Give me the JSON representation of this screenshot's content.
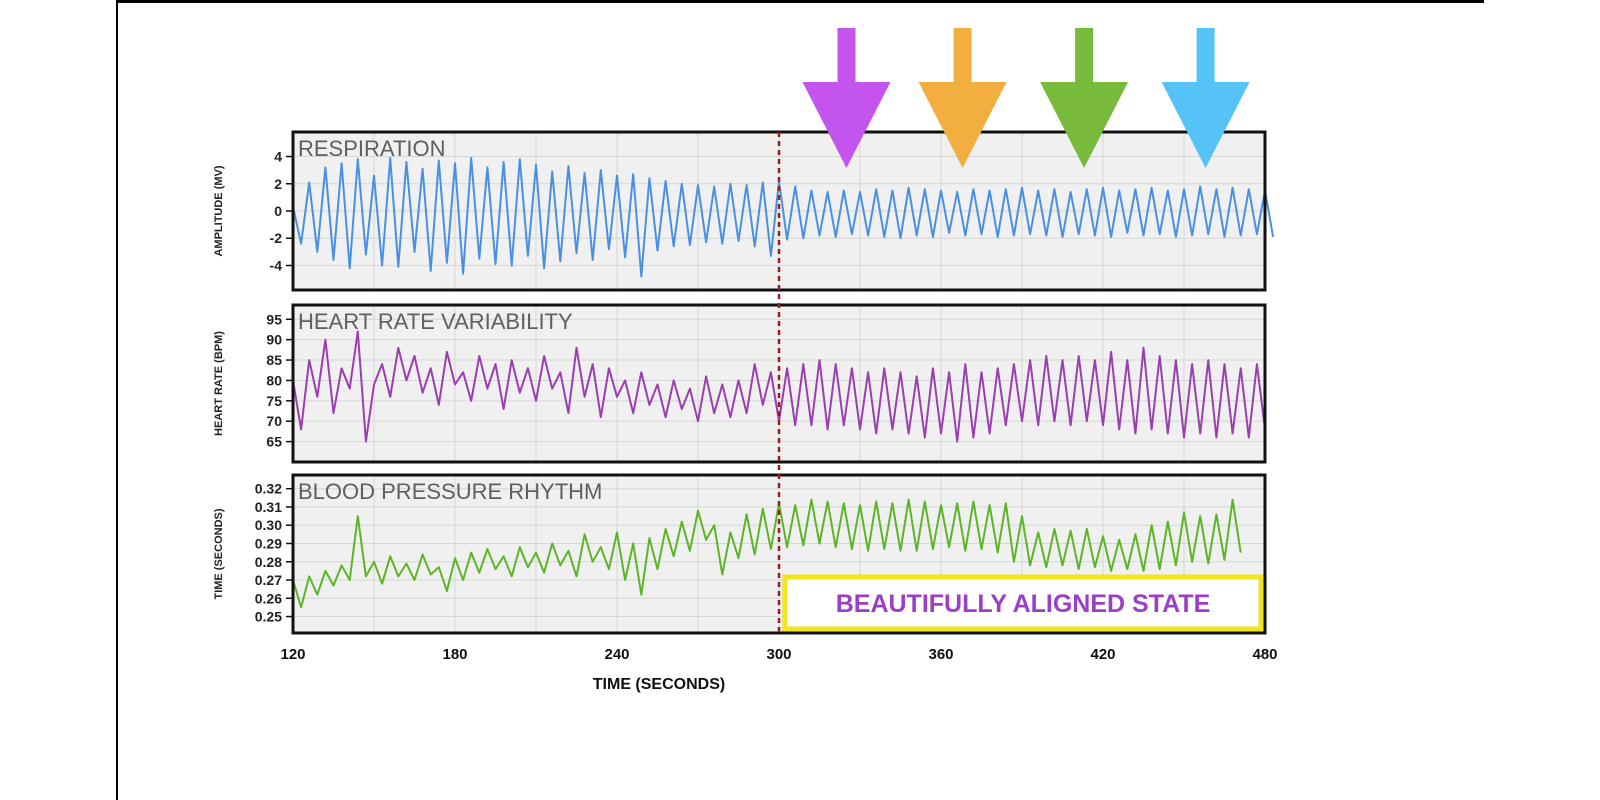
{
  "chart_data": {
    "type": "line",
    "x_axis": {
      "label": "TIME (SECONDS)",
      "range": [
        120,
        480
      ],
      "ticks": [
        120,
        180,
        240,
        300,
        360,
        420,
        480
      ]
    },
    "grid": true,
    "marker_line": {
      "x": 300,
      "style": "dashed",
      "color": "#9b1c1c"
    },
    "callout": {
      "text": "BEAUTIFULLY ALIGNED STATE",
      "x_range": [
        300,
        480
      ],
      "border_color": "#f2e51d",
      "text_color": "#9b3fc9"
    },
    "arrows": [
      {
        "x": 325,
        "color": "#c354ee"
      },
      {
        "x": 368,
        "color": "#f2ae3f"
      },
      {
        "x": 413,
        "color": "#78bb3c"
      },
      {
        "x": 458,
        "color": "#55c3f5"
      }
    ],
    "panels": [
      {
        "title": "RESPIRATION",
        "ylabel": "AMPLITUDE (MV)",
        "ylim": [
          -5.8,
          5.8
        ],
        "yticks": [
          4,
          2,
          0,
          -2,
          -4
        ],
        "ytick_labels": [
          "4",
          "2",
          "0",
          "-2",
          "-4"
        ],
        "color": "#4a90e2",
        "x_start": 120,
        "x_step": 3,
        "values": [
          0.3,
          -2.4,
          2.1,
          -3.0,
          3.2,
          -3.6,
          3.5,
          -4.2,
          3.8,
          -3.2,
          2.6,
          -4.0,
          3.9,
          -4.1,
          3.6,
          -3.0,
          3.1,
          -4.4,
          3.7,
          -3.8,
          3.5,
          -4.6,
          3.9,
          -3.5,
          3.2,
          -3.9,
          3.6,
          -4.0,
          3.8,
          -3.3,
          3.4,
          -4.2,
          2.9,
          -3.7,
          3.3,
          -3.1,
          2.8,
          -3.6,
          3.0,
          -2.8,
          2.6,
          -3.4,
          2.7,
          -4.8,
          2.4,
          -2.9,
          2.2,
          -2.6,
          2.0,
          -2.5,
          1.9,
          -2.3,
          1.8,
          -2.4,
          2.0,
          -2.2,
          1.9,
          -2.6,
          2.1,
          -3.3,
          2.2,
          -2.1,
          1.8,
          -2.0,
          1.5,
          -1.8,
          1.4,
          -1.9,
          1.5,
          -1.7,
          1.4,
          -1.8,
          1.6,
          -1.9,
          1.5,
          -2.0,
          1.7,
          -1.8,
          1.6,
          -1.9,
          1.5,
          -1.6,
          1.4,
          -1.8,
          1.6,
          -1.7,
          1.5,
          -1.9,
          1.6,
          -1.8,
          1.7,
          -1.7,
          1.5,
          -1.8,
          1.6,
          -1.9,
          1.4,
          -1.7,
          1.6,
          -1.8,
          1.7,
          -1.9,
          1.5,
          -1.6,
          1.6,
          -1.8,
          1.7,
          -1.7,
          1.5,
          -1.9,
          1.6,
          -1.8,
          1.8,
          -1.7,
          1.6,
          -1.9,
          1.7,
          -1.8,
          1.6,
          -1.7,
          1.5,
          -1.9
        ]
      },
      {
        "title": "HEART RATE VARIABILITY",
        "ylabel": "HEART RATE (BPM)",
        "ylim": [
          60,
          98.5
        ],
        "yticks": [
          95,
          90,
          85,
          80,
          75,
          70,
          65
        ],
        "ytick_labels": [
          "95",
          "90",
          "85",
          "80",
          "75",
          "70",
          "65"
        ],
        "color": "#9b3fb0",
        "x_start": 120,
        "x_step": 3,
        "values": [
          80,
          68,
          85,
          76,
          90,
          72,
          83,
          78,
          92,
          65,
          79,
          84,
          76,
          88,
          80,
          86,
          77,
          83,
          74,
          87,
          79,
          82,
          75,
          86,
          78,
          84,
          73,
          85,
          77,
          83,
          75,
          86,
          78,
          82,
          72,
          88,
          76,
          84,
          71,
          83,
          76,
          80,
          72,
          82,
          74,
          79,
          71,
          80,
          73,
          78,
          70,
          81,
          72,
          79,
          71,
          80,
          72,
          84,
          74,
          82,
          70,
          83,
          69,
          84,
          69,
          85,
          68,
          84,
          69,
          83,
          68,
          82,
          67,
          83,
          68,
          82,
          67,
          81,
          66,
          83,
          67,
          82,
          65,
          84,
          66,
          82,
          67,
          83,
          69,
          84,
          70,
          85,
          69,
          86,
          70,
          85,
          69,
          86,
          70,
          85,
          69,
          87,
          68,
          85,
          67,
          88,
          68,
          86,
          67,
          85,
          66,
          84,
          67,
          85,
          66,
          84,
          67,
          83,
          66,
          84,
          68
        ]
      },
      {
        "title": "BLOOD PRESSURE RHYTHM",
        "ylabel": "TIME (SECONDS)",
        "ylim": [
          0.241,
          0.3275
        ],
        "yticks": [
          0.32,
          0.31,
          0.3,
          0.29,
          0.28,
          0.27,
          0.26,
          0.25
        ],
        "ytick_labels": [
          "0.32",
          "0.31",
          "0.30",
          "0.29",
          "0.28",
          "0.27",
          "0.26",
          "0.25"
        ],
        "color": "#5cb526",
        "x_start": 120,
        "x_step": 3,
        "values": [
          0.27,
          0.255,
          0.272,
          0.262,
          0.275,
          0.267,
          0.278,
          0.27,
          0.305,
          0.272,
          0.28,
          0.268,
          0.283,
          0.272,
          0.279,
          0.27,
          0.284,
          0.273,
          0.277,
          0.264,
          0.282,
          0.27,
          0.285,
          0.274,
          0.287,
          0.276,
          0.283,
          0.272,
          0.288,
          0.277,
          0.285,
          0.274,
          0.29,
          0.278,
          0.286,
          0.272,
          0.295,
          0.28,
          0.288,
          0.276,
          0.296,
          0.27,
          0.29,
          0.262,
          0.293,
          0.276,
          0.298,
          0.283,
          0.302,
          0.286,
          0.308,
          0.292,
          0.3,
          0.273,
          0.296,
          0.282,
          0.306,
          0.284,
          0.309,
          0.287,
          0.312,
          0.288,
          0.311,
          0.289,
          0.314,
          0.29,
          0.313,
          0.288,
          0.312,
          0.287,
          0.311,
          0.286,
          0.313,
          0.287,
          0.312,
          0.286,
          0.314,
          0.286,
          0.313,
          0.287,
          0.311,
          0.288,
          0.312,
          0.286,
          0.313,
          0.287,
          0.311,
          0.285,
          0.312,
          0.28,
          0.305,
          0.278,
          0.296,
          0.277,
          0.298,
          0.278,
          0.297,
          0.276,
          0.298,
          0.277,
          0.294,
          0.275,
          0.292,
          0.276,
          0.295,
          0.275,
          0.3,
          0.276,
          0.302,
          0.278,
          0.307,
          0.28,
          0.305,
          0.279,
          0.306,
          0.281,
          0.314,
          0.285
        ]
      }
    ]
  }
}
